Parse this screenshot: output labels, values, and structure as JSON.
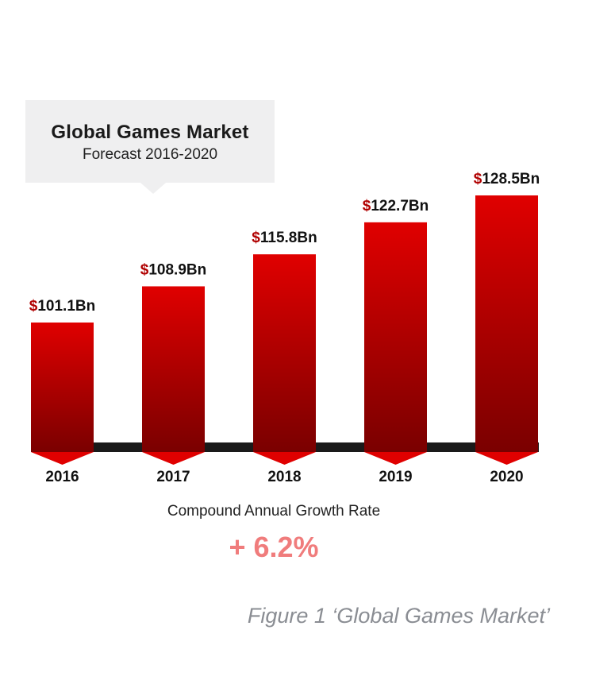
{
  "chart_data": {
    "type": "bar",
    "title": "Global Games Market",
    "subtitle": "Forecast 2016-2020",
    "categories": [
      "2016",
      "2017",
      "2018",
      "2019",
      "2020"
    ],
    "values": [
      101.1,
      108.9,
      115.8,
      122.7,
      128.5
    ],
    "value_labels": [
      "101.1Bn",
      "108.9Bn",
      "115.8Bn",
      "122.7Bn",
      "128.5Bn"
    ],
    "value_prefix": "$",
    "units": "Billion USD",
    "colors": {
      "bar_top": "#e00000",
      "bar_bottom": "#7a0000",
      "prefix": "#b00000",
      "baseline": "#1a1a1a"
    },
    "grid": false,
    "legend": "none"
  },
  "cagr": {
    "label": "Compound Annual Growth Rate",
    "value": "+ 6.2%"
  },
  "caption": "Figure 1 ‘Global Games Market’"
}
